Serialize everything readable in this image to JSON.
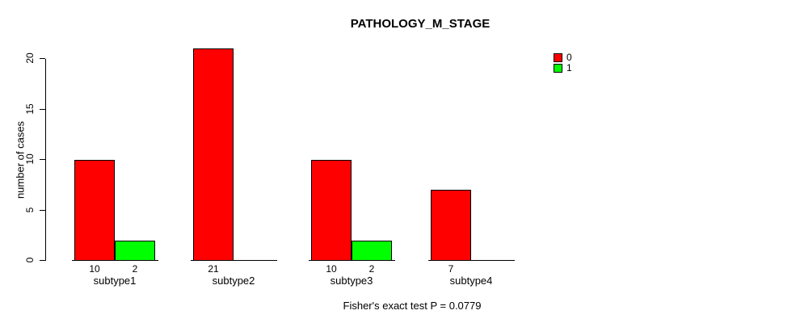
{
  "chart_data": {
    "type": "bar",
    "title": "PATHOLOGY_M_STAGE",
    "xlabel": "",
    "ylabel": "number of cases",
    "ylim": [
      0,
      20
    ],
    "yticks": [
      0,
      5,
      10,
      15,
      20
    ],
    "grid": false,
    "legend_position": "top-right",
    "categories": [
      "subtype1",
      "subtype2",
      "subtype3",
      "subtype4"
    ],
    "series": [
      {
        "name": "0",
        "color": "#ff0000",
        "values": [
          10,
          21,
          10,
          7
        ]
      },
      {
        "name": "1",
        "color": "#00ff00",
        "values": [
          2,
          0,
          2,
          0
        ]
      }
    ],
    "bar_value_labels": [
      [
        "10",
        "2"
      ],
      [
        "21",
        ""
      ],
      [
        "10",
        "2"
      ],
      [
        "7",
        ""
      ]
    ],
    "annotation": "Fisher's exact test P = 0.0779"
  },
  "legend": {
    "entries": [
      {
        "label": "0",
        "color": "#ff0000"
      },
      {
        "label": "1",
        "color": "#00ff00"
      }
    ]
  }
}
